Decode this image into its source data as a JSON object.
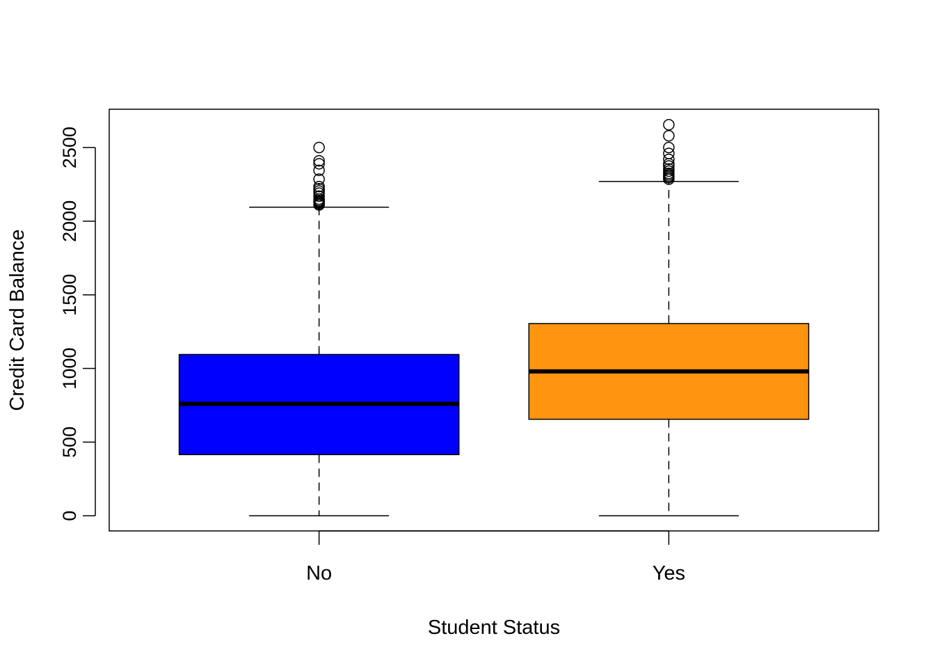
{
  "chart_data": {
    "type": "box",
    "title": "",
    "xlabel": "Student Status",
    "ylabel": "Credit Card Balance",
    "ylim": [
      -103,
      2760
    ],
    "yticks": [
      0,
      500,
      1000,
      1500,
      2000,
      2500
    ],
    "grid": false,
    "legend": "none",
    "categories": [
      "No",
      "Yes"
    ],
    "boxes": [
      {
        "category": "No",
        "color": "#0000FF",
        "whisker_low": 0,
        "q1": 415,
        "median": 760,
        "q3": 1095,
        "whisker_high": 2095,
        "outliers": [
          2110,
          2118,
          2125,
          2133,
          2140,
          2150,
          2170,
          2190,
          2205,
          2220,
          2235,
          2285,
          2345,
          2390,
          2410,
          2500
        ]
      },
      {
        "category": "Yes",
        "color": "#FF9410",
        "whisker_low": 0,
        "q1": 655,
        "median": 980,
        "q3": 1305,
        "whisker_high": 2270,
        "outliers": [
          2285,
          2295,
          2305,
          2315,
          2325,
          2340,
          2355,
          2375,
          2390,
          2420,
          2460,
          2500,
          2580,
          2655
        ]
      }
    ]
  }
}
